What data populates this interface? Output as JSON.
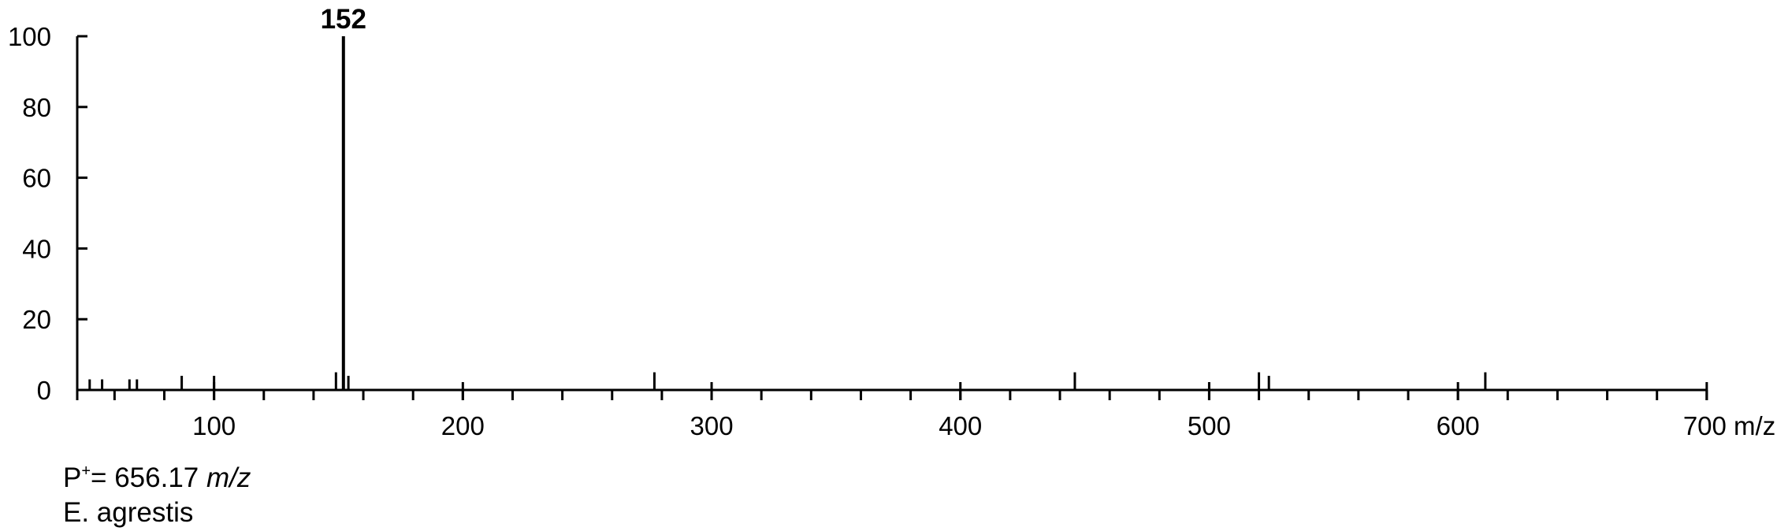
{
  "chart_data": {
    "type": "bar",
    "subtype": "mass-spectrum-stick",
    "xlim": [
      45,
      700
    ],
    "ylim": [
      0,
      100
    ],
    "x_ticks": [
      100,
      200,
      300,
      400,
      500,
      600,
      700
    ],
    "x_minor_step": 20,
    "y_ticks": [
      0,
      20,
      40,
      60,
      80,
      100
    ],
    "x_unit": "m/z",
    "peaks": [
      {
        "x": 50,
        "y": 3
      },
      {
        "x": 55,
        "y": 3
      },
      {
        "x": 66,
        "y": 3
      },
      {
        "x": 69,
        "y": 3
      },
      {
        "x": 87,
        "y": 4
      },
      {
        "x": 100,
        "y": 4
      },
      {
        "x": 149,
        "y": 5
      },
      {
        "x": 152,
        "y": 100,
        "label": "152"
      },
      {
        "x": 154,
        "y": 4
      },
      {
        "x": 277,
        "y": 5
      },
      {
        "x": 446,
        "y": 5
      },
      {
        "x": 520,
        "y": 5
      },
      {
        "x": 524,
        "y": 4
      },
      {
        "x": 611,
        "y": 5
      }
    ],
    "grid": false,
    "legend": "none"
  },
  "annotations": {
    "precursor_label": "P",
    "precursor_charge": "+",
    "precursor_value": "= 656.17",
    "precursor_unit": "m/z",
    "species": "E. agrestis"
  }
}
